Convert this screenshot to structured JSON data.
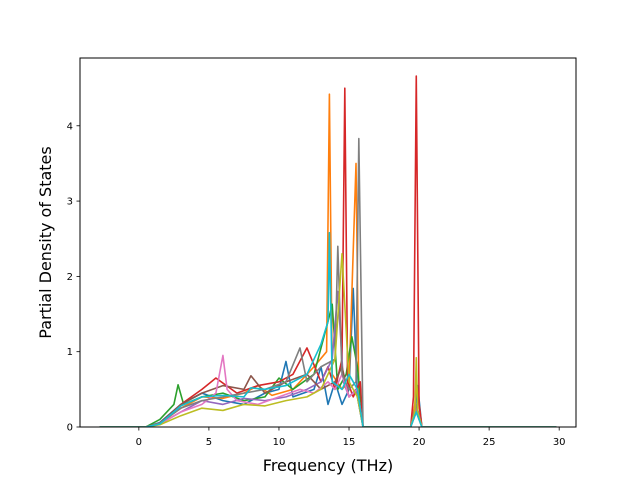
{
  "chart_data": {
    "type": "line",
    "title": "",
    "xlabel": "Frequency (THz)",
    "ylabel": "Partial Density of States",
    "xlim": [
      -4.2,
      31.2
    ],
    "ylim": [
      0,
      4.9
    ],
    "xticks": [
      0,
      5,
      10,
      15,
      20,
      25,
      30
    ],
    "xtick_labels": [
      "0",
      "5",
      "10",
      "15",
      "20",
      "25",
      "30"
    ],
    "yticks": [
      0,
      1,
      2,
      3,
      4
    ],
    "ytick_labels": [
      "0",
      "1",
      "2",
      "3",
      "4"
    ],
    "grid": false,
    "legend": "none",
    "series": [
      {
        "color": "#1f77b4",
        "x": [
          -2.8,
          0.5,
          1.5,
          3.0,
          4.5,
          6.0,
          7.5,
          9.0,
          10.0,
          10.5,
          11.0,
          12.5,
          13.0,
          13.5,
          14.0,
          14.5,
          15.0,
          15.3,
          15.6,
          16.0,
          19.4,
          19.7,
          19.9,
          20.2,
          29.8
        ],
        "y": [
          0,
          0,
          0.06,
          0.3,
          0.45,
          0.35,
          0.3,
          0.45,
          0.5,
          0.87,
          0.4,
          0.5,
          0.8,
          0.3,
          0.6,
          0.3,
          0.5,
          1.84,
          0.4,
          0,
          0,
          0.2,
          0.55,
          0,
          0
        ]
      },
      {
        "color": "#ff7f0e",
        "x": [
          -2.8,
          0.5,
          1.5,
          3.0,
          4.5,
          6.0,
          7.5,
          8.5,
          9.5,
          11.0,
          12.5,
          13.4,
          13.6,
          13.8,
          14.5,
          15.0,
          15.5,
          15.7,
          16.0,
          19.4,
          19.7,
          19.8,
          20.2,
          29.8
        ],
        "y": [
          0,
          0,
          0.05,
          0.25,
          0.4,
          0.38,
          0.45,
          0.55,
          0.42,
          0.5,
          0.8,
          1.0,
          4.42,
          0.7,
          0.5,
          0.6,
          3.5,
          0.4,
          0,
          0,
          0.3,
          0.6,
          0,
          0
        ]
      },
      {
        "color": "#2ca02c",
        "x": [
          -2.8,
          0.5,
          1.5,
          2.5,
          2.8,
          3.2,
          4.5,
          6.0,
          7.5,
          9.0,
          10.0,
          11.0,
          12.5,
          13.5,
          13.8,
          14.2,
          14.8,
          15.2,
          15.6,
          16.0,
          19.4,
          19.8,
          20.2,
          29.8
        ],
        "y": [
          0,
          0,
          0.1,
          0.3,
          0.56,
          0.3,
          0.4,
          0.45,
          0.35,
          0.4,
          0.65,
          0.5,
          0.7,
          1.4,
          1.63,
          0.5,
          0.7,
          1.2,
          0.8,
          0,
          0,
          0.3,
          0,
          0
        ]
      },
      {
        "color": "#d62728",
        "x": [
          -2.8,
          0.5,
          1.5,
          3.0,
          4.5,
          5.5,
          7.0,
          8.5,
          10.0,
          11.0,
          12.0,
          13.0,
          13.5,
          14.0,
          14.5,
          14.7,
          14.9,
          15.3,
          15.8,
          16.0,
          19.4,
          19.6,
          19.8,
          20.0,
          20.2,
          29.8
        ],
        "y": [
          0,
          0,
          0.05,
          0.3,
          0.5,
          0.65,
          0.45,
          0.55,
          0.6,
          0.7,
          1.05,
          0.6,
          0.8,
          0.5,
          0.9,
          4.5,
          0.6,
          0.4,
          0.6,
          0,
          0,
          0.4,
          4.66,
          0.3,
          0,
          0
        ]
      },
      {
        "color": "#9467bd",
        "x": [
          -2.8,
          0.5,
          1.5,
          3.0,
          4.5,
          6.0,
          7.5,
          9.0,
          10.5,
          12.0,
          13.0,
          13.8,
          14.2,
          14.6,
          15.0,
          15.5,
          16.0,
          19.4,
          19.8,
          20.2,
          29.8
        ],
        "y": [
          0,
          0,
          0.04,
          0.2,
          0.35,
          0.3,
          0.38,
          0.35,
          0.4,
          0.5,
          0.6,
          0.9,
          1.8,
          0.6,
          0.4,
          0.5,
          0,
          0,
          0.25,
          0,
          0
        ]
      },
      {
        "color": "#8c564b",
        "x": [
          -2.8,
          0.5,
          1.5,
          3.0,
          4.5,
          6.0,
          7.5,
          8.0,
          9.0,
          10.5,
          12.0,
          13.0,
          14.0,
          14.5,
          15.0,
          15.6,
          16.0,
          19.4,
          19.8,
          20.2,
          29.8
        ],
        "y": [
          0,
          0,
          0.05,
          0.3,
          0.45,
          0.55,
          0.5,
          0.68,
          0.45,
          0.6,
          0.7,
          0.5,
          0.6,
          0.8,
          0.4,
          0.5,
          0,
          0,
          0.2,
          0,
          0
        ]
      },
      {
        "color": "#e377c2",
        "x": [
          -2.8,
          0.5,
          1.5,
          3.0,
          4.5,
          5.5,
          6.0,
          6.3,
          7.0,
          8.5,
          10.0,
          11.5,
          12.5,
          13.5,
          14.0,
          14.5,
          15.0,
          15.6,
          16.0,
          19.4,
          19.8,
          20.2,
          29.8
        ],
        "y": [
          0,
          0,
          0.04,
          0.2,
          0.3,
          0.45,
          0.95,
          0.5,
          0.35,
          0.3,
          0.4,
          0.5,
          0.45,
          0.6,
          0.5,
          0.7,
          0.4,
          0.5,
          0,
          0,
          0.3,
          0,
          0
        ]
      },
      {
        "color": "#7f7f7f",
        "x": [
          -2.8,
          0.5,
          1.5,
          3.0,
          4.5,
          6.0,
          7.5,
          9.0,
          10.5,
          11.5,
          12.0,
          13.0,
          14.0,
          14.2,
          14.5,
          15.0,
          15.5,
          15.7,
          16.0,
          19.4,
          19.8,
          20.2,
          29.8
        ],
        "y": [
          0,
          0,
          0.05,
          0.25,
          0.35,
          0.4,
          0.45,
          0.5,
          0.6,
          1.05,
          0.6,
          0.8,
          0.9,
          2.4,
          0.7,
          0.5,
          0.6,
          3.83,
          0,
          0,
          0.3,
          0,
          0
        ]
      },
      {
        "color": "#bcbd22",
        "x": [
          -2.8,
          0.5,
          1.5,
          3.0,
          4.5,
          6.0,
          7.5,
          9.0,
          10.5,
          12.0,
          13.0,
          14.0,
          14.5,
          15.0,
          15.6,
          16.0,
          19.4,
          19.7,
          19.8,
          19.9,
          20.2,
          29.8
        ],
        "y": [
          0,
          0,
          0.03,
          0.15,
          0.25,
          0.22,
          0.3,
          0.28,
          0.35,
          0.4,
          0.5,
          0.9,
          2.3,
          0.6,
          0.4,
          0,
          0,
          0.2,
          0.92,
          0.2,
          0,
          0
        ]
      },
      {
        "color": "#17becf",
        "x": [
          -2.8,
          0.5,
          1.5,
          3.0,
          4.5,
          6.0,
          7.5,
          8.0,
          9.0,
          10.5,
          12.0,
          13.0,
          13.5,
          13.6,
          13.8,
          14.5,
          15.0,
          15.6,
          16.0,
          19.4,
          19.8,
          20.2,
          29.8
        ],
        "y": [
          0,
          0,
          0.04,
          0.28,
          0.4,
          0.42,
          0.4,
          0.52,
          0.5,
          0.55,
          0.7,
          1.1,
          1.4,
          2.58,
          0.6,
          0.5,
          0.7,
          0.5,
          0,
          0,
          0.2,
          0,
          0
        ]
      }
    ]
  }
}
